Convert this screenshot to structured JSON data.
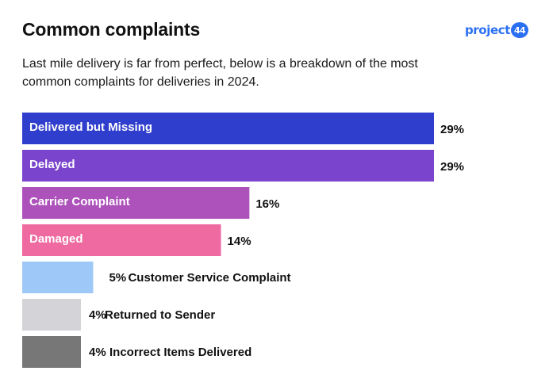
{
  "header": {
    "title": "Common complaints",
    "subtitle": "Last mile delivery is far from perfect, below is a breakdown of the most common complaints for deliveries in 2024."
  },
  "logo": {
    "text": "project",
    "badge": "44",
    "color": "#2b6ff3"
  },
  "chart_data": {
    "type": "bar",
    "orientation": "horizontal",
    "title": "",
    "xlabel": "",
    "ylabel": "",
    "categories": [
      "Delivered but Missing",
      "Delayed",
      "Carrier Complaint",
      "Damaged",
      "Customer Service Complaint",
      "Returned to Sender",
      "Incorrect Items Delivered"
    ],
    "values": [
      29,
      29,
      16,
      14,
      5,
      4,
      4
    ],
    "value_labels": [
      "29%",
      "29%",
      "16%",
      "14%",
      "5%",
      "4%",
      "4%"
    ],
    "colors": [
      "#2f3ecc",
      "#7a44cc",
      "#ad52bb",
      "#ee6aa0",
      "#9ec8f8",
      "#d4d4d8",
      "#777777"
    ],
    "label_inside": [
      true,
      true,
      true,
      true,
      false,
      false,
      false
    ],
    "xlim": [
      0,
      29
    ],
    "grid": false,
    "legend": "none"
  }
}
